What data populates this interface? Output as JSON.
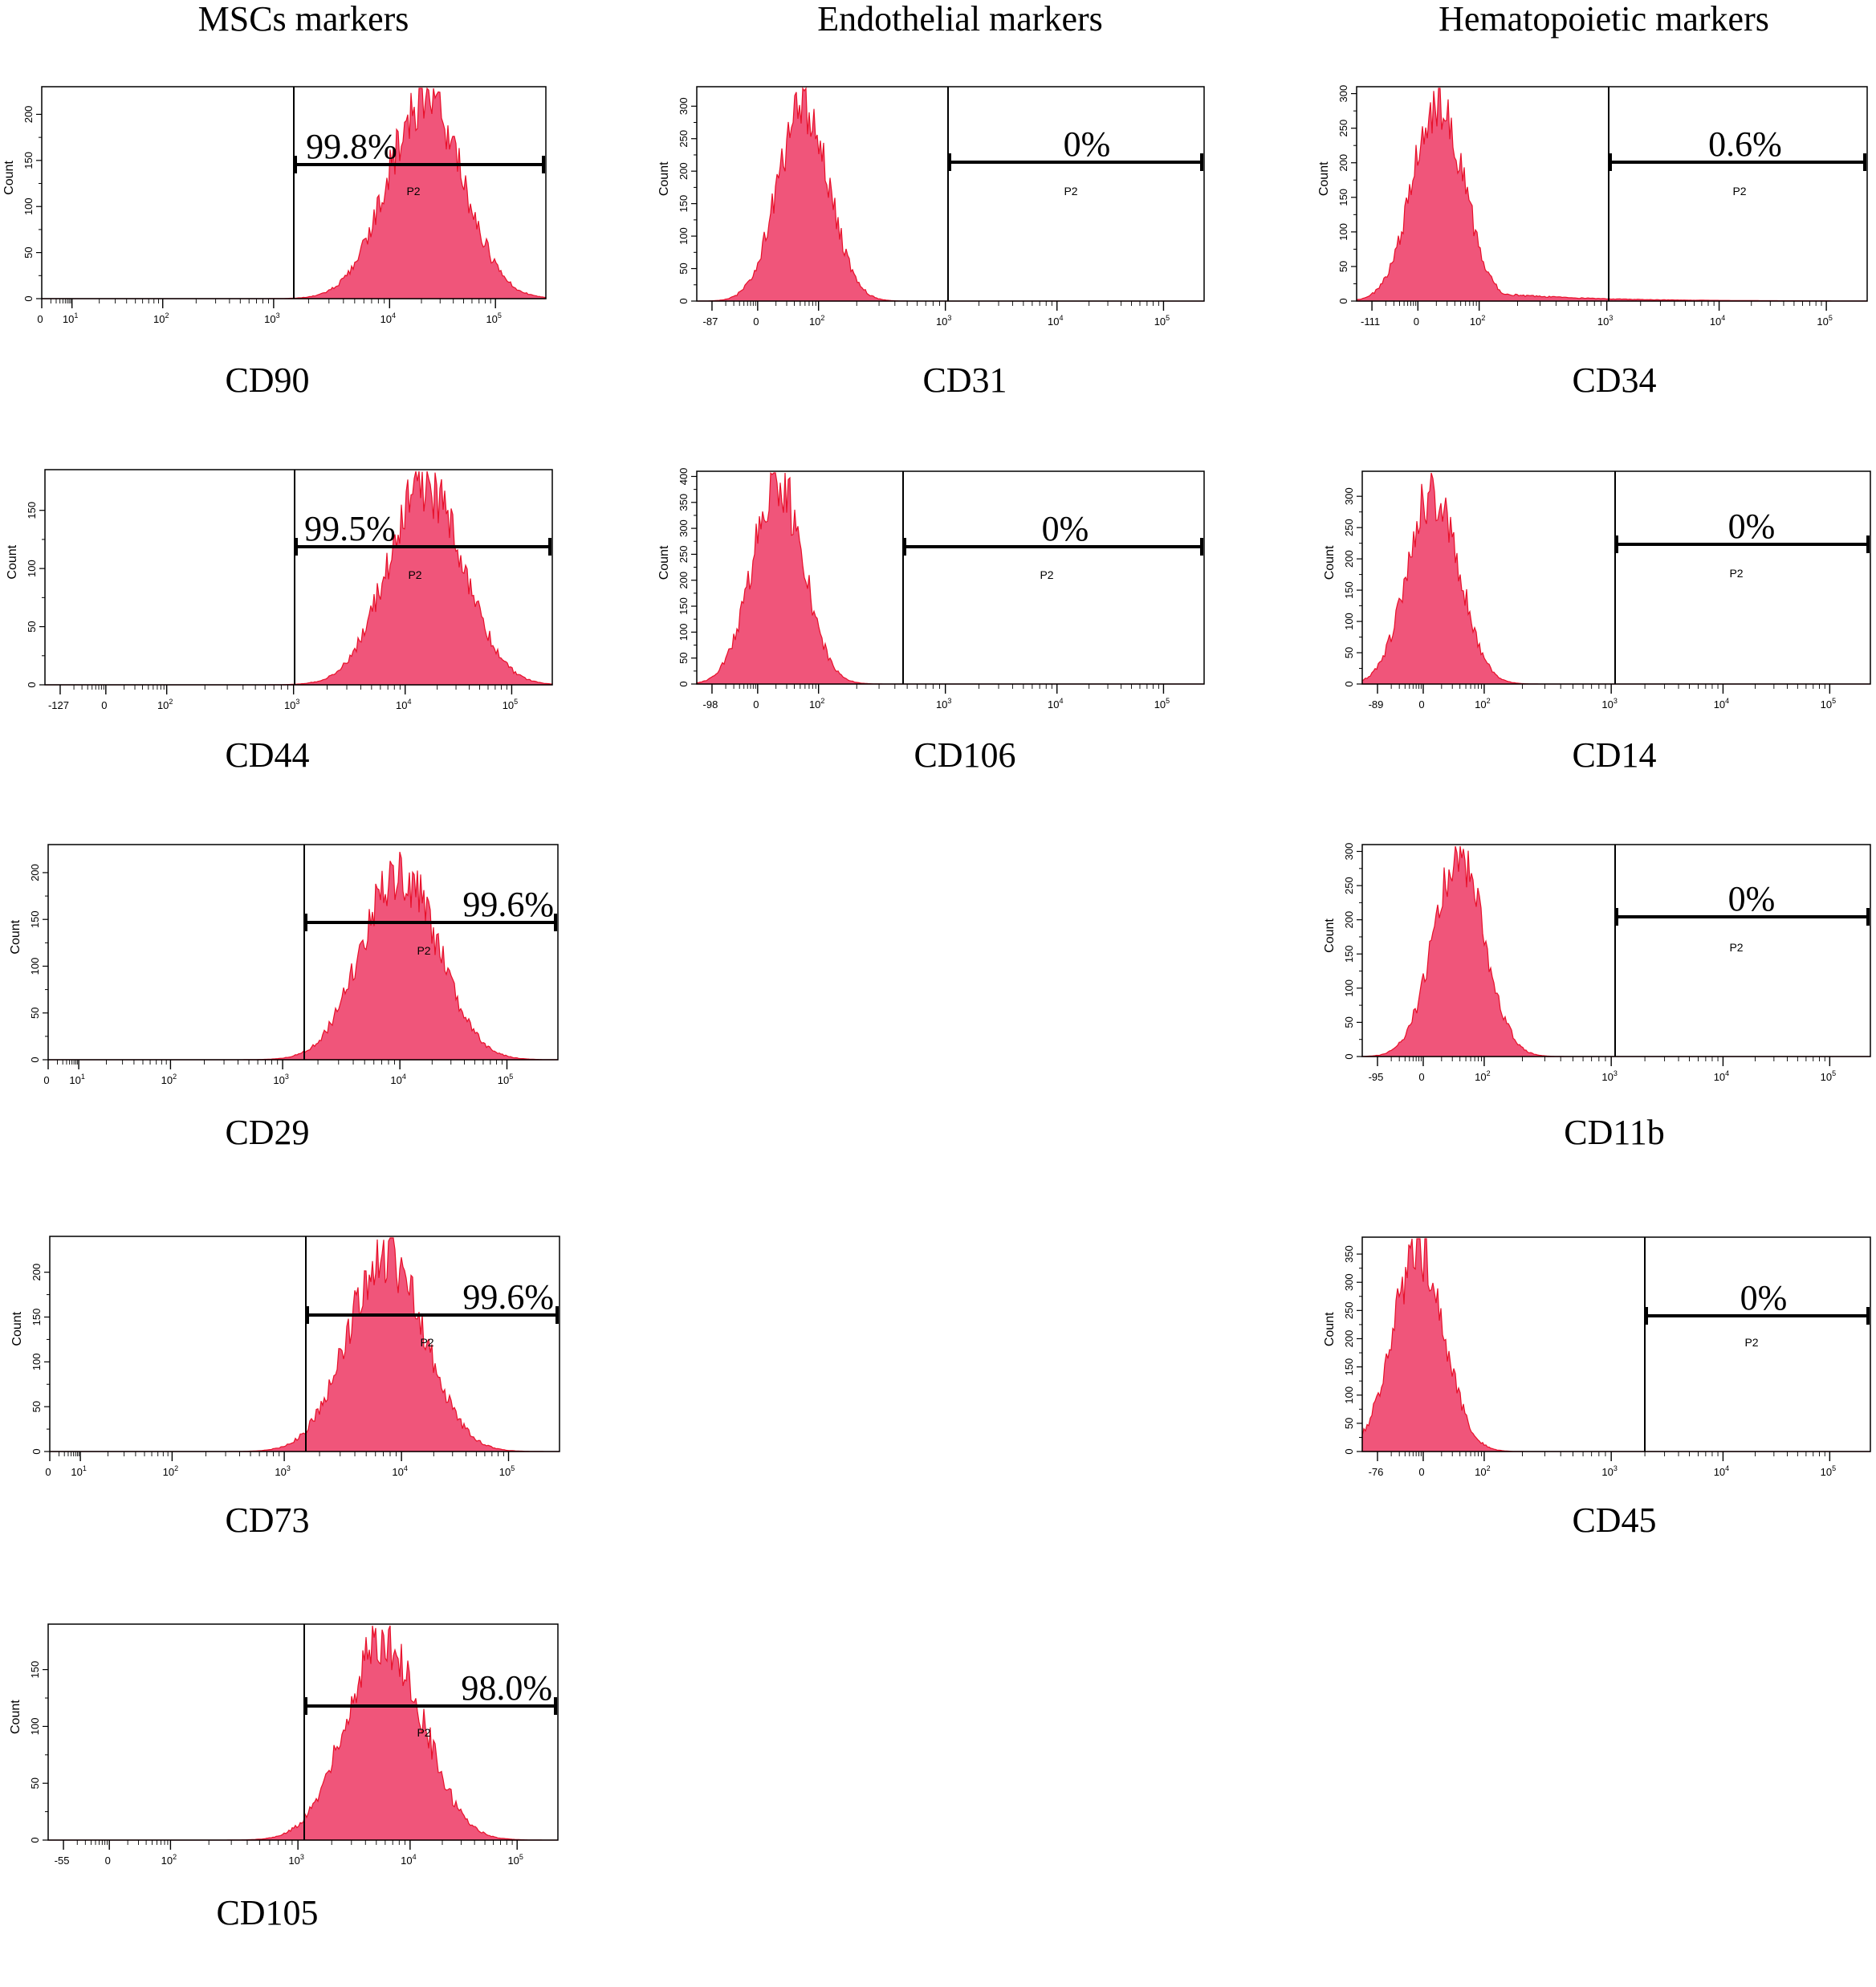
{
  "column_titles": [
    "MSCs markers",
    "Endothelial markers",
    "Hematopoietic markers"
  ],
  "colors": {
    "histogram_fill": "#f0557a",
    "histogram_edge": "#e8102a",
    "frame": "#000000"
  },
  "chart_data": [
    {
      "type": "histogram",
      "marker": "CD90",
      "group": "MSCs markers",
      "ylabel": "Count",
      "yticks": [
        0,
        50,
        100,
        150,
        200
      ],
      "ymax": 230,
      "xticks": [
        "0",
        "10^1",
        "10^2",
        "10^3",
        "10^4",
        "10^5"
      ],
      "gate_name": "P2",
      "gate_percent": "99.8%",
      "peak_x": "≈2×10^4",
      "peak_count": 225
    },
    {
      "type": "histogram",
      "marker": "CD44",
      "group": "MSCs markers",
      "ylabel": "Count",
      "yticks": [
        0,
        50,
        100,
        150
      ],
      "ymax": 185,
      "xticks": [
        "-127",
        "0",
        "10^2",
        "10^3",
        "10^4",
        "10^5"
      ],
      "gate_name": "P2",
      "gate_percent": "99.5%",
      "peak_x": "≈2×10^4",
      "peak_count": 180
    },
    {
      "type": "histogram",
      "marker": "CD29",
      "group": "MSCs markers",
      "ylabel": "Count",
      "yticks": [
        0,
        50,
        100,
        150,
        200
      ],
      "ymax": 230,
      "xticks": [
        "0",
        "10^1",
        "10^2",
        "10^3",
        "10^4",
        "10^5"
      ],
      "gate_name": "P2",
      "gate_percent": "99.6%",
      "peak_x": "≈1.2×10^4",
      "peak_count": 210
    },
    {
      "type": "histogram",
      "marker": "CD73",
      "group": "MSCs markers",
      "ylabel": "Count",
      "yticks": [
        0,
        50,
        100,
        150,
        200
      ],
      "ymax": 240,
      "xticks": [
        "0",
        "10^1",
        "10^2",
        "10^3",
        "10^4",
        "10^5"
      ],
      "gate_name": "P2",
      "gate_percent": "99.6%",
      "peak_x": "≈1×10^4",
      "peak_count": 230
    },
    {
      "type": "histogram",
      "marker": "CD105",
      "group": "MSCs markers",
      "ylabel": "Count",
      "yticks": [
        0,
        50,
        100,
        150
      ],
      "ymax": 190,
      "xticks": [
        "-55",
        "0",
        "10^2",
        "10^3",
        "10^4",
        "10^5"
      ],
      "gate_name": "P2",
      "gate_percent": "98.0%",
      "peak_x": "≈1×10^4",
      "peak_count": 185
    },
    {
      "type": "histogram",
      "marker": "CD31",
      "group": "Endothelial markers",
      "ylabel": "Count",
      "yticks": [
        0,
        50,
        100,
        150,
        200,
        250,
        300
      ],
      "ymax": 330,
      "xticks": [
        "-87",
        "0",
        "10^2",
        "10^3",
        "10^4",
        "10^5"
      ],
      "gate_name": "P2",
      "gate_percent": "0%",
      "peak_x": "≈60",
      "peak_count": 320
    },
    {
      "type": "histogram",
      "marker": "CD106",
      "group": "Endothelial markers",
      "ylabel": "Count",
      "yticks": [
        0,
        50,
        100,
        150,
        200,
        250,
        300,
        350,
        400
      ],
      "ymax": 410,
      "xticks": [
        "-98",
        "0",
        "10^2",
        "10^3",
        "10^4",
        "10^5"
      ],
      "gate_name": "P2",
      "gate_percent": "0%",
      "peak_x": "≈30",
      "peak_count": 410
    },
    {
      "type": "histogram",
      "marker": "CD34",
      "group": "Hematopoietic markers",
      "ylabel": "Count",
      "yticks": [
        0,
        50,
        100,
        150,
        200,
        250,
        300
      ],
      "ymax": 310,
      "xticks": [
        "-111",
        "0",
        "10^2",
        "10^3",
        "10^4",
        "10^5"
      ],
      "gate_name": "P2",
      "gate_percent": "0.6%",
      "peak_x": "≈40",
      "peak_count": 305
    },
    {
      "type": "histogram",
      "marker": "CD14",
      "group": "Hematopoietic markers",
      "ylabel": "Count",
      "yticks": [
        0,
        50,
        100,
        150,
        200,
        250,
        300
      ],
      "ymax": 340,
      "xticks": [
        "-89",
        "0",
        "10^2",
        "10^3",
        "10^4",
        "10^5"
      ],
      "gate_name": "P2",
      "gate_percent": "0%",
      "peak_x": "≈40",
      "peak_count": 325
    },
    {
      "type": "histogram",
      "marker": "CD11b",
      "group": "Hematopoietic markers",
      "ylabel": "Count",
      "yticks": [
        0,
        50,
        100,
        150,
        200,
        250,
        300
      ],
      "ymax": 310,
      "xticks": [
        "-95",
        "0",
        "10^2",
        "10^3",
        "10^4",
        "10^5"
      ],
      "gate_name": "P2",
      "gate_percent": "0%",
      "peak_x": "≈60",
      "peak_count": 305
    },
    {
      "type": "histogram",
      "marker": "CD45",
      "group": "Hematopoietic markers",
      "ylabel": "Count",
      "yticks": [
        0,
        50,
        100,
        150,
        200,
        250,
        300,
        350
      ],
      "ymax": 380,
      "xticks": [
        "-76",
        "0",
        "10^2",
        "10^3",
        "10^4",
        "10^5"
      ],
      "gate_name": "P2",
      "gate_percent": "0%",
      "peak_x": "≈30",
      "peak_count": 375
    }
  ]
}
